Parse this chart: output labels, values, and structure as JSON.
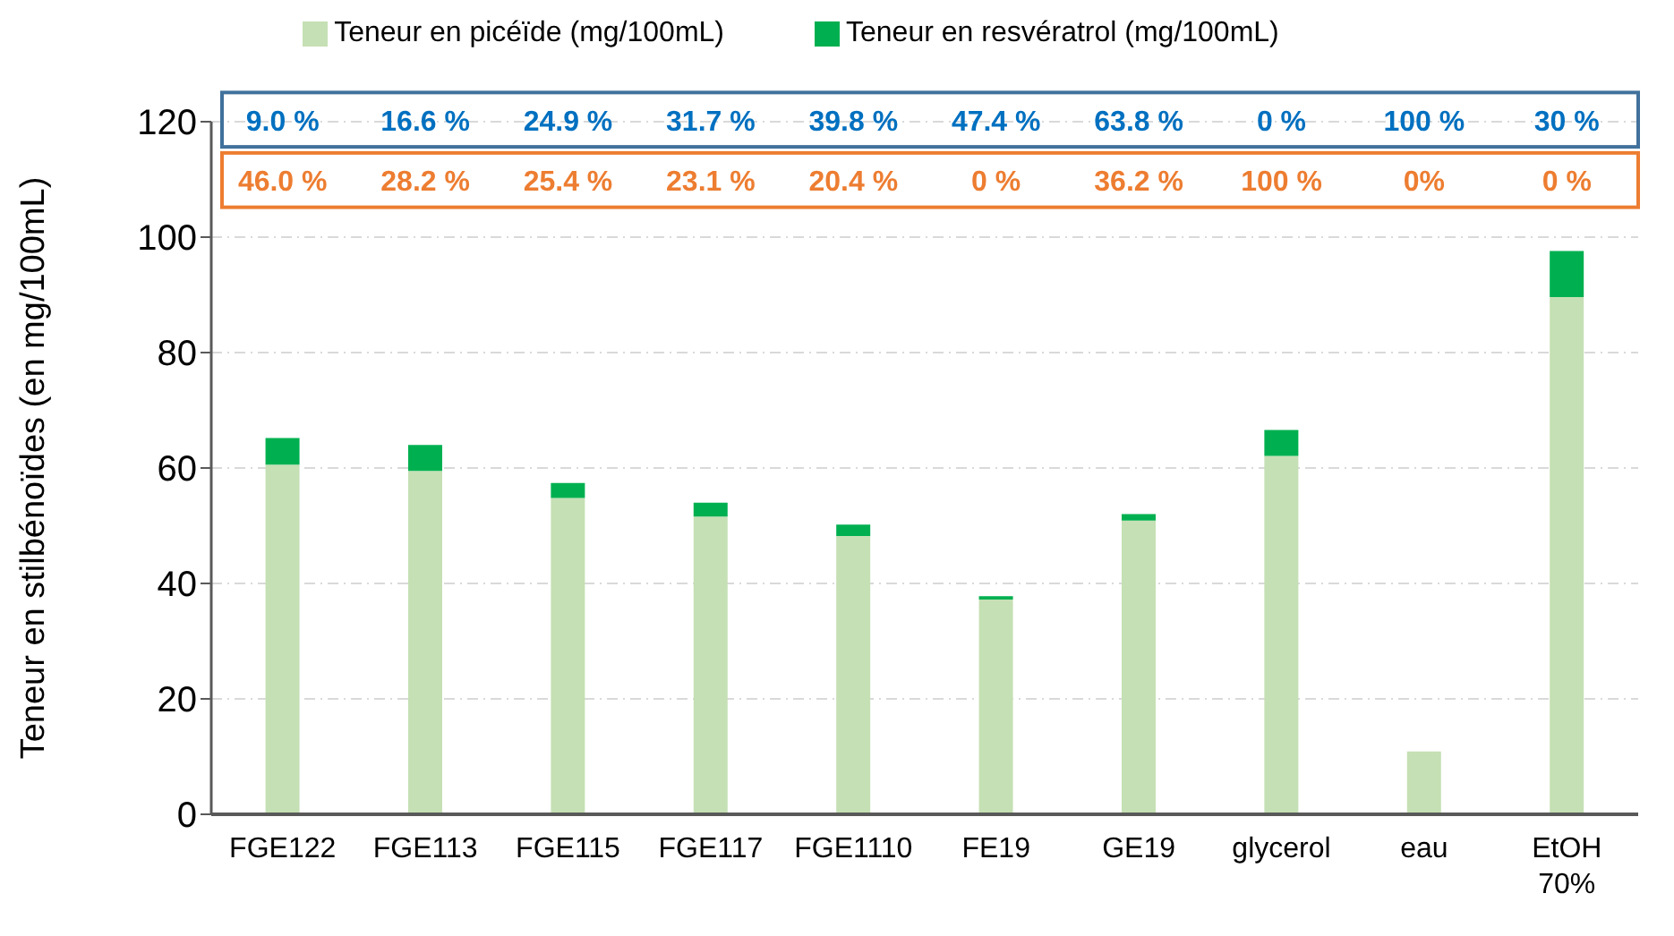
{
  "chart_data": {
    "type": "bar",
    "stacked": true,
    "ylabel": "Teneur en stilbénoïdes (en mg/100mL)",
    "categories": [
      "FGE122",
      "FGE113",
      "FGE115",
      "FGE117",
      "FGE1110",
      "FE19",
      "GE19",
      "glycerol",
      "eau",
      "EtOH 70%"
    ],
    "series": [
      {
        "name": "Teneur en picéïde (mg/100mL)",
        "color": "#c5e0b4",
        "values": [
          60.6,
          59.5,
          54.8,
          51.6,
          48.2,
          37.2,
          50.9,
          62.1,
          10.9,
          89.6
        ]
      },
      {
        "name": "Teneur en resvératrol (mg/100mL)",
        "color": "#00b050",
        "values": [
          4.6,
          4.5,
          2.6,
          2.4,
          2.0,
          0.6,
          1.1,
          4.5,
          0,
          8.0
        ]
      }
    ],
    "ylim": [
      0,
      120
    ],
    "yticks": [
      0,
      20,
      40,
      60,
      80,
      100,
      120
    ],
    "grid": "y",
    "legend": "top",
    "annotations": [
      "9.0 %",
      "16.6 %",
      "24.9 %",
      "31.7 %",
      "39.8 %",
      "47.4 %",
      "63.8 %",
      "0 %",
      "100 %",
      "30 %",
      "46.0 %",
      "28.2 %",
      "25.4 %",
      "23.1 %",
      "20.4 %",
      "0 %",
      "36.2 %",
      "100 %",
      "0%",
      "0 %"
    ]
  }
}
